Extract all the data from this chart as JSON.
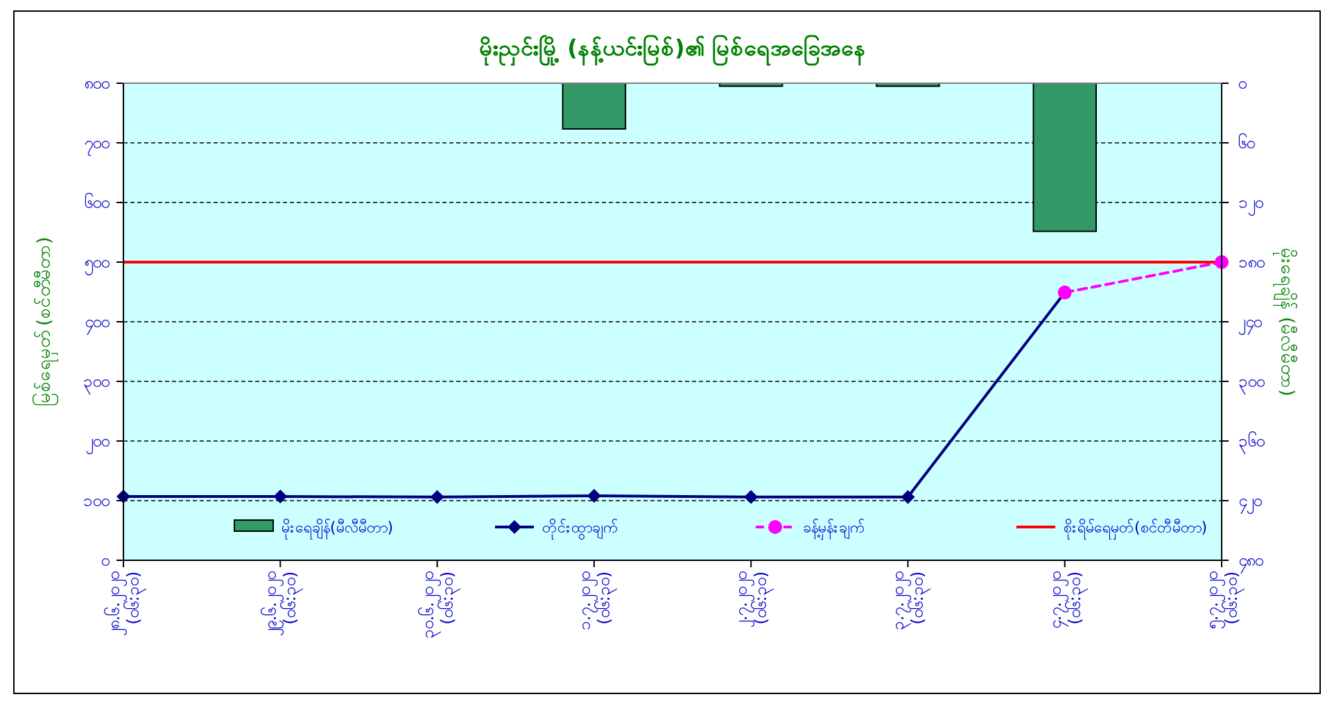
{
  "chart_data": {
    "type": "bar",
    "title": "မိုးညှင်းမြို့ (နန့်ယင်းမြစ်)၏ မြစ်ရေအခြေအနေ",
    "ylabel": "မြစ်ရေမှတ် (စင်တီမီတာ)",
    "y2label": "မိုးရေချိန် (မီလီမီတာ)",
    "categories": [
      "၂၈.၆.၂၀၂၀\n(၀၆:၃၀)",
      "၂၉.၆.၂၀၂၀\n(၀၆:၃၀)",
      "၃၀.၆.၂၀၂၀\n(၀၆:၃၀)",
      "၁.၇.၂၀၂၀\n(၀၆:၃၀)",
      "၂.၇.၂၀၂၀\n(၀၆:၃၀)",
      "၃.၇.၂၀၂၀\n(၀၆:၃၀)",
      "၄.၇.၂၀၂၀\n(၀၆:၃၀)",
      "၅.၇.၂၀၂၀\n(၀၆:၃၀)"
    ],
    "series": [
      {
        "name": "မိုးရေချိန်(မီလီမီတာ)",
        "axis": "y2",
        "color": "#339966",
        "values": [
          null,
          null,
          null,
          46,
          3,
          3,
          149,
          null
        ]
      },
      {
        "name": "တိုင်းထွာချက်",
        "type": "line",
        "color": "#000080",
        "marker": "diamond",
        "line_style": "solid",
        "values": [
          107,
          107,
          106,
          108,
          106,
          106,
          449,
          null
        ]
      },
      {
        "name": "ခန့်မှန်းချက်",
        "type": "line",
        "color": "#ff00ff",
        "marker": "circle",
        "line_style": "dashed",
        "values": [
          null,
          null,
          null,
          null,
          null,
          null,
          449,
          500
        ]
      }
    ],
    "ref_lines": [
      {
        "axis": "y",
        "value": 500,
        "label": "စိုးရိမ်ရေမှတ်(စင်တီမီတာ)",
        "color": "#ff0000",
        "line_style": "solid"
      }
    ],
    "ylim": [
      0,
      800
    ],
    "yticks": [
      {
        "value": 0,
        "label": "၀"
      },
      {
        "value": 100,
        "label": "၁၀၀"
      },
      {
        "value": 200,
        "label": "၂၀၀"
      },
      {
        "value": 300,
        "label": "၃၀၀"
      },
      {
        "value": 400,
        "label": "၄၀၀"
      },
      {
        "value": 500,
        "label": "၅၀၀"
      },
      {
        "value": 600,
        "label": "၆၀၀"
      },
      {
        "value": 700,
        "label": "၇၀၀"
      },
      {
        "value": 800,
        "label": "၈၀၀"
      }
    ],
    "y2lim": [
      480,
      0
    ],
    "y2ticks": [
      {
        "value": 0,
        "label": "၀"
      },
      {
        "value": 60,
        "label": "၆၀"
      },
      {
        "value": 120,
        "label": "၁၂၀"
      },
      {
        "value": 180,
        "label": "၁၈၀"
      },
      {
        "value": 240,
        "label": "၂၄၀"
      },
      {
        "value": 300,
        "label": "၃၀၀"
      },
      {
        "value": 360,
        "label": "၃၆၀"
      },
      {
        "value": 420,
        "label": "၄၂၀"
      },
      {
        "value": 480,
        "label": "၄၈၀"
      }
    ],
    "grid": "y",
    "legend": "bottom"
  }
}
